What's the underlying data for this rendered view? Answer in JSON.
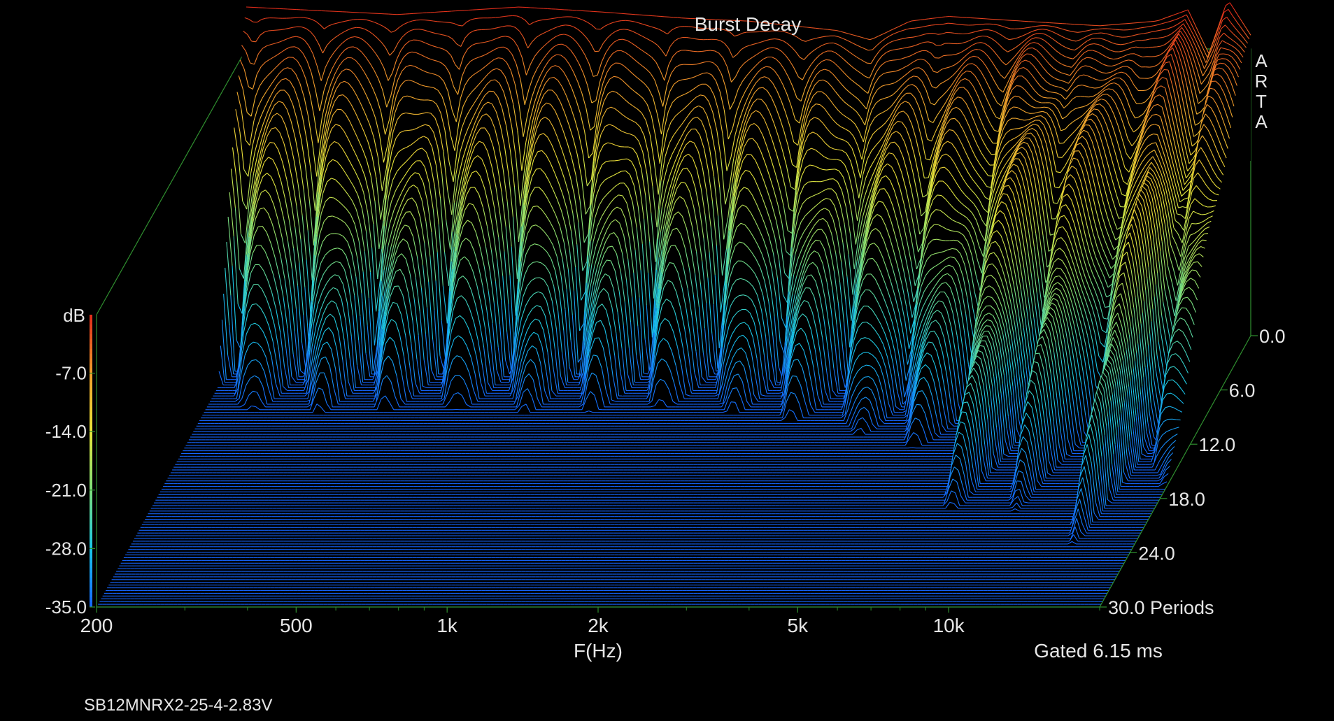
{
  "chart_data": {
    "type": "waterfall",
    "title": "Burst Decay",
    "watermark": "ARTA",
    "x_axis": {
      "label": "F(Hz)",
      "scale": "log",
      "range": [
        200,
        20000
      ],
      "ticks": [
        {
          "value": 200,
          "label": "200"
        },
        {
          "value": 500,
          "label": "500"
        },
        {
          "value": 1000,
          "label": "1k"
        },
        {
          "value": 2000,
          "label": "2k"
        },
        {
          "value": 5000,
          "label": "5k"
        },
        {
          "value": 10000,
          "label": "10k"
        }
      ]
    },
    "z_axis": {
      "unit": "Periods",
      "range": [
        0,
        30
      ],
      "ticks": [
        {
          "value": 0,
          "label": "0.0"
        },
        {
          "value": 6,
          "label": "6.0"
        },
        {
          "value": 12,
          "label": "12.0"
        },
        {
          "value": 18,
          "label": "18.0"
        },
        {
          "value": 24,
          "label": "24.0"
        },
        {
          "value": 30,
          "label": "30.0"
        }
      ]
    },
    "y_axis": {
      "label": "dB",
      "range": [
        -35,
        0
      ],
      "ticks": [
        {
          "value": -7,
          "label": "-7.0"
        },
        {
          "value": -14,
          "label": "-14.0"
        },
        {
          "value": -21,
          "label": "-21.0"
        },
        {
          "value": -28,
          "label": "-28.0"
        },
        {
          "value": -35,
          "label": "-35.0"
        }
      ]
    },
    "gate_note": "Gated 6.15 ms",
    "device": "SB12MNRX2-25-4-2.83V",
    "colors": {
      "background": "#000000",
      "frame": "#2f8f2f",
      "text": "#e6e6e6",
      "floor": "#2a5fd8",
      "colormap": [
        "#1565ff",
        "#19c8e8",
        "#7ee07a",
        "#e8e63a",
        "#f2a02c",
        "#e02a1a"
      ]
    },
    "slices": 100,
    "front_response_db": [
      {
        "hz": 200,
        "db": 0
      },
      {
        "hz": 400,
        "db": -0.8
      },
      {
        "hz": 700,
        "db": 0
      },
      {
        "hz": 1000,
        "db": -0.5
      },
      {
        "hz": 1500,
        "db": -1.2
      },
      {
        "hz": 2000,
        "db": -1.5
      },
      {
        "hz": 3000,
        "db": -2.5
      },
      {
        "hz": 3500,
        "db": -3.5
      },
      {
        "hz": 4200,
        "db": -1.5
      },
      {
        "hz": 5000,
        "db": -1.0
      },
      {
        "hz": 7000,
        "db": -1.5
      },
      {
        "hz": 10000,
        "db": -2.0
      },
      {
        "hz": 13000,
        "db": -1.5
      },
      {
        "hz": 15000,
        "db": -0.3
      },
      {
        "hz": 16500,
        "db": -5.0
      },
      {
        "hz": 18000,
        "db": 0.8
      },
      {
        "hz": 20000,
        "db": -3.0
      }
    ]
  }
}
